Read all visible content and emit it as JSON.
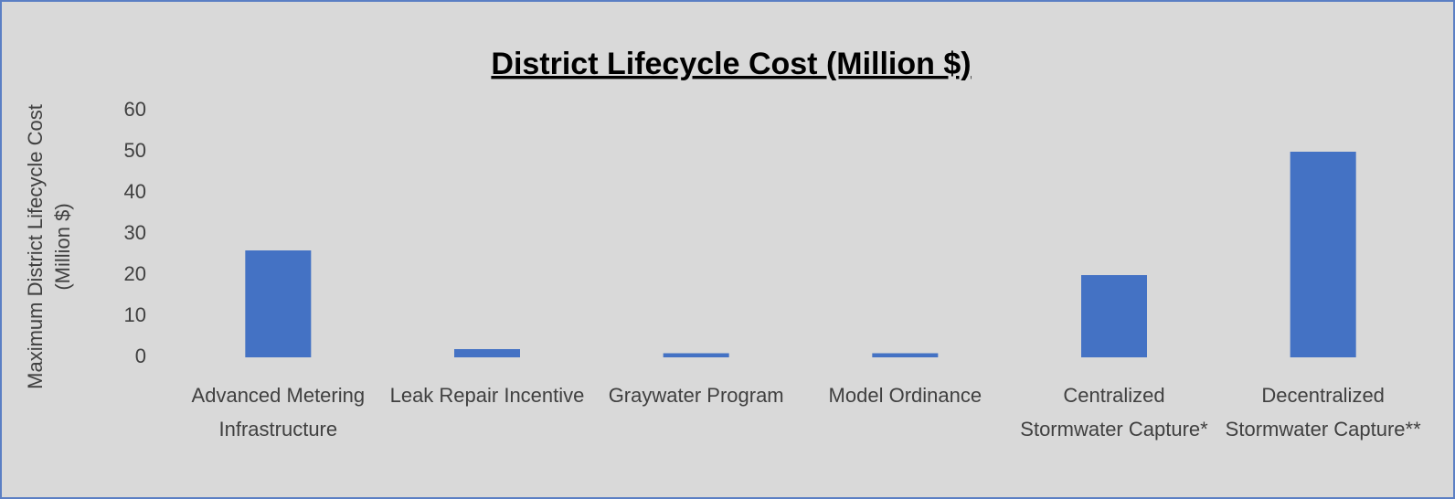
{
  "chart_data": {
    "type": "bar",
    "title": "District Lifecycle Cost (Million $)",
    "y_label": "Maximum District Lifecycle Cost (Million $)",
    "categories": [
      "Advanced Metering Infrastructure",
      "Leak Repair Incentive",
      "Graywater Program",
      "Model Ordinance",
      "Centralized Stormwater Capture*",
      "Decentralized Stormwater Capture**"
    ],
    "values": [
      26,
      2,
      1,
      1,
      20,
      50
    ],
    "color": "#4472c4",
    "ylim": [
      0,
      60
    ],
    "yticks": [
      0,
      10,
      20,
      30,
      40,
      50,
      60
    ],
    "grid": false
  }
}
